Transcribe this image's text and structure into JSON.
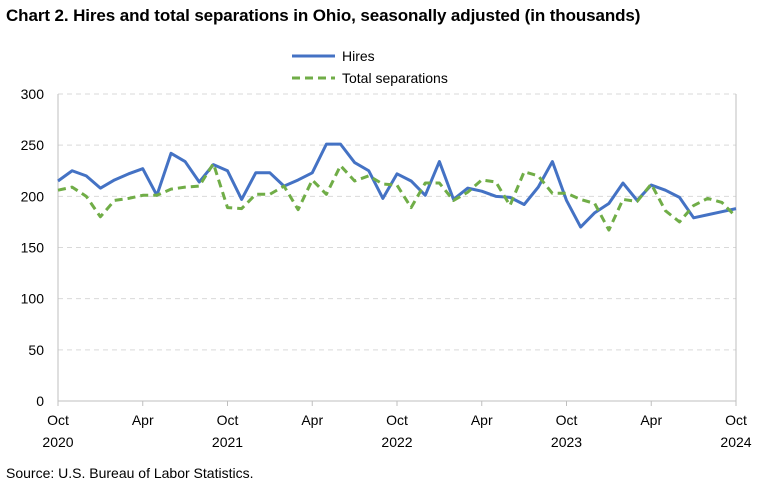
{
  "title": "Chart 2. Hires and total separations in Ohio, seasonally adjusted (in thousands)",
  "source": "Source: U.S. Bureau of Labor Statistics.",
  "colors": {
    "hires": "#4472C4",
    "separations": "#70AD47",
    "grid": "#D9D9D9"
  },
  "chart_data": {
    "type": "line",
    "title": "Chart 2. Hires and total separations in Ohio, seasonally adjusted (in thousands)",
    "xlabel": "",
    "ylabel": "",
    "ylim": [
      0,
      300
    ],
    "yticks": [
      0,
      50,
      100,
      150,
      200,
      250,
      300
    ],
    "x_tick_labels": [
      {
        "month": "Oct",
        "year": "2020",
        "index": 0
      },
      {
        "month": "Apr",
        "year": "",
        "index": 6
      },
      {
        "month": "Oct",
        "year": "2021",
        "index": 12
      },
      {
        "month": "Apr",
        "year": "",
        "index": 18
      },
      {
        "month": "Oct",
        "year": "2022",
        "index": 24
      },
      {
        "month": "Apr",
        "year": "",
        "index": 30
      },
      {
        "month": "Oct",
        "year": "2023",
        "index": 36
      },
      {
        "month": "Apr",
        "year": "",
        "index": 42
      },
      {
        "month": "Oct",
        "year": "2024",
        "index": 48
      }
    ],
    "x": [
      "2020-10",
      "2020-11",
      "2020-12",
      "2021-01",
      "2021-02",
      "2021-03",
      "2021-04",
      "2021-05",
      "2021-06",
      "2021-07",
      "2021-08",
      "2021-09",
      "2021-10",
      "2021-11",
      "2021-12",
      "2022-01",
      "2022-02",
      "2022-03",
      "2022-04",
      "2022-05",
      "2022-06",
      "2022-07",
      "2022-08",
      "2022-09",
      "2022-10",
      "2022-11",
      "2022-12",
      "2023-01",
      "2023-02",
      "2023-03",
      "2023-04",
      "2023-05",
      "2023-06",
      "2023-07",
      "2023-08",
      "2023-09",
      "2023-10",
      "2023-11",
      "2023-12",
      "2024-01",
      "2024-02",
      "2024-03",
      "2024-04",
      "2024-05",
      "2024-06",
      "2024-07",
      "2024-08",
      "2024-09",
      "2024-10"
    ],
    "grid": true,
    "legend_position": "top-center",
    "series": [
      {
        "name": "Hires",
        "style": "solid",
        "values": [
          215,
          225,
          220,
          208,
          216,
          222,
          227,
          201,
          242,
          234,
          214,
          231,
          225,
          197,
          223,
          223,
          210,
          216,
          223,
          251,
          251,
          233,
          225,
          198,
          222,
          215,
          201,
          234,
          197,
          208,
          205,
          200,
          199,
          192,
          209,
          234,
          196,
          170,
          184,
          193,
          213,
          196,
          211,
          206,
          199,
          179,
          182,
          185,
          188
        ]
      },
      {
        "name": "Total separations",
        "style": "dashed",
        "values": [
          206,
          209,
          200,
          180,
          196,
          198,
          201,
          201,
          207,
          209,
          210,
          232,
          189,
          188,
          202,
          202,
          210,
          187,
          216,
          202,
          230,
          215,
          220,
          212,
          211,
          189,
          213,
          213,
          196,
          204,
          216,
          214,
          191,
          224,
          220,
          203,
          203,
          197,
          193,
          167,
          197,
          195,
          212,
          186,
          175,
          191,
          198,
          194,
          180
        ]
      }
    ]
  }
}
